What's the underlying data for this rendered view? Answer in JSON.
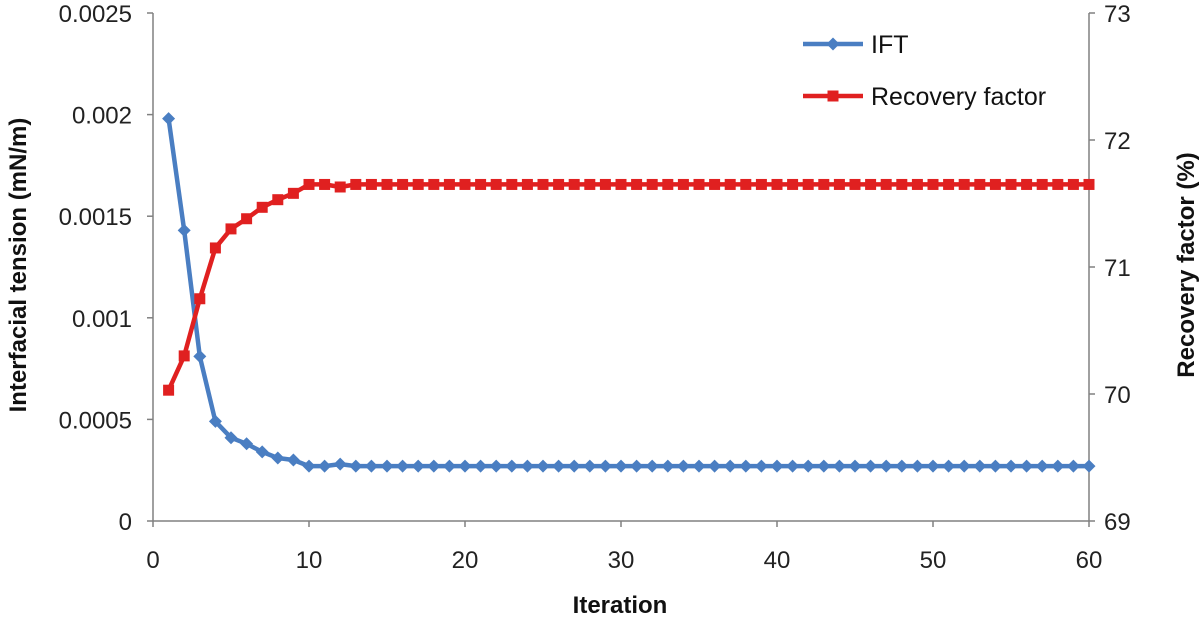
{
  "chart_data": {
    "type": "line",
    "xlabel": "Iteration",
    "ylabel_left": "Interfacial tension (mN/m)",
    "ylabel_right": "Recovery factor (%)",
    "xlim": [
      0,
      60
    ],
    "xticks": [
      0,
      10,
      20,
      30,
      40,
      50,
      60
    ],
    "x_tick_labels": [
      "0",
      "10",
      "20",
      "30",
      "40",
      "50",
      "60"
    ],
    "ylim_left": [
      0,
      0.0025
    ],
    "yticks_left": [
      0,
      0.0005,
      0.001,
      0.0015,
      0.002,
      0.0025
    ],
    "y_tick_labels_left": [
      "0",
      "0.0005",
      "0.001",
      "0.0015",
      "0.002",
      "0.0025"
    ],
    "ylim_right": [
      69,
      73
    ],
    "yticks_right": [
      69,
      70,
      71,
      72,
      73
    ],
    "y_tick_labels_right": [
      "69",
      "70",
      "71",
      "72",
      "73"
    ],
    "grid": false,
    "legend_position": "top-right",
    "series": [
      {
        "name": "IFT",
        "axis": "left",
        "color": "#4a7ec2",
        "marker": "diamond",
        "x": [
          1,
          2,
          3,
          4,
          5,
          6,
          7,
          8,
          9,
          10,
          11,
          12,
          13,
          14,
          15,
          16,
          17,
          18,
          19,
          20,
          21,
          22,
          23,
          24,
          25,
          26,
          27,
          28,
          29,
          30,
          31,
          32,
          33,
          34,
          35,
          36,
          37,
          38,
          39,
          40,
          41,
          42,
          43,
          44,
          45,
          46,
          47,
          48,
          49,
          50,
          51,
          52,
          53,
          54,
          55,
          56,
          57,
          58,
          59,
          60
        ],
        "values": [
          0.00198,
          0.00143,
          0.00081,
          0.00049,
          0.00041,
          0.00038,
          0.00034,
          0.00031,
          0.0003,
          0.00027,
          0.00027,
          0.00028,
          0.00027,
          0.00027,
          0.00027,
          0.00027,
          0.00027,
          0.00027,
          0.00027,
          0.00027,
          0.00027,
          0.00027,
          0.00027,
          0.00027,
          0.00027,
          0.00027,
          0.00027,
          0.00027,
          0.00027,
          0.00027,
          0.00027,
          0.00027,
          0.00027,
          0.00027,
          0.00027,
          0.00027,
          0.00027,
          0.00027,
          0.00027,
          0.00027,
          0.00027,
          0.00027,
          0.00027,
          0.00027,
          0.00027,
          0.00027,
          0.00027,
          0.00027,
          0.00027,
          0.00027,
          0.00027,
          0.00027,
          0.00027,
          0.00027,
          0.00027,
          0.00027,
          0.00027,
          0.00027,
          0.00027,
          0.00027
        ]
      },
      {
        "name": "Recovery factor",
        "axis": "right",
        "color": "#e02020",
        "marker": "square",
        "x": [
          1,
          2,
          3,
          4,
          5,
          6,
          7,
          8,
          9,
          10,
          11,
          12,
          13,
          14,
          15,
          16,
          17,
          18,
          19,
          20,
          21,
          22,
          23,
          24,
          25,
          26,
          27,
          28,
          29,
          30,
          31,
          32,
          33,
          34,
          35,
          36,
          37,
          38,
          39,
          40,
          41,
          42,
          43,
          44,
          45,
          46,
          47,
          48,
          49,
          50,
          51,
          52,
          53,
          54,
          55,
          56,
          57,
          58,
          59,
          60
        ],
        "values": [
          70.03,
          70.3,
          70.75,
          71.15,
          71.3,
          71.38,
          71.47,
          71.53,
          71.58,
          71.65,
          71.65,
          71.63,
          71.65,
          71.65,
          71.65,
          71.65,
          71.65,
          71.65,
          71.65,
          71.65,
          71.65,
          71.65,
          71.65,
          71.65,
          71.65,
          71.65,
          71.65,
          71.65,
          71.65,
          71.65,
          71.65,
          71.65,
          71.65,
          71.65,
          71.65,
          71.65,
          71.65,
          71.65,
          71.65,
          71.65,
          71.65,
          71.65,
          71.65,
          71.65,
          71.65,
          71.65,
          71.65,
          71.65,
          71.65,
          71.65,
          71.65,
          71.65,
          71.65,
          71.65,
          71.65,
          71.65,
          71.65,
          71.65,
          71.65,
          71.65
        ]
      }
    ]
  },
  "colors": {
    "axis": "#808080"
  }
}
